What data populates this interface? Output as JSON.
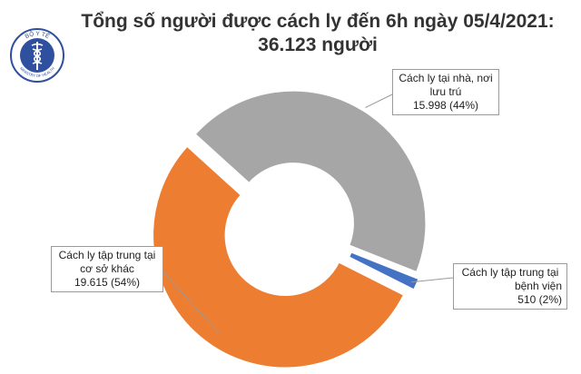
{
  "header": {
    "title_line1": "Tổng số người được cách ly đến 6h ngày 05/4/2021:",
    "title_line2": "36.123 người"
  },
  "logo": {
    "top_text": "BỘ Y TẾ",
    "bottom_text": "MINISTRY OF HEALTH",
    "icon": "caduceus-icon"
  },
  "chart_data": {
    "type": "pie",
    "variant": "donut",
    "title": "Tổng số người được cách ly đến 6h ngày 05/4/2021: 36.123 người",
    "slices": [
      {
        "label": "Cách ly tại nhà, nơi lưu trú",
        "label_lines": [
          "Cách ly tại nhà, nơi",
          "lưu trú"
        ],
        "value": 15998,
        "value_text": "15.998 (44%)",
        "percent": 44,
        "color": "#a6a6a6"
      },
      {
        "label": "Cách ly tập trung tại bệnh viện",
        "label_lines": [
          "Cách ly tập trung tại",
          "bệnh viện"
        ],
        "value": 510,
        "value_text": "510 (2%)",
        "percent": 2,
        "color": "#4472c4"
      },
      {
        "label": "Cách ly tập trung tại cơ sở khác",
        "label_lines": [
          "Cách ly tập trung tại",
          "cơ sở khác"
        ],
        "value": 19615,
        "value_text": "19.615 (54%)",
        "percent": 54,
        "color": "#ed7d31"
      }
    ]
  }
}
